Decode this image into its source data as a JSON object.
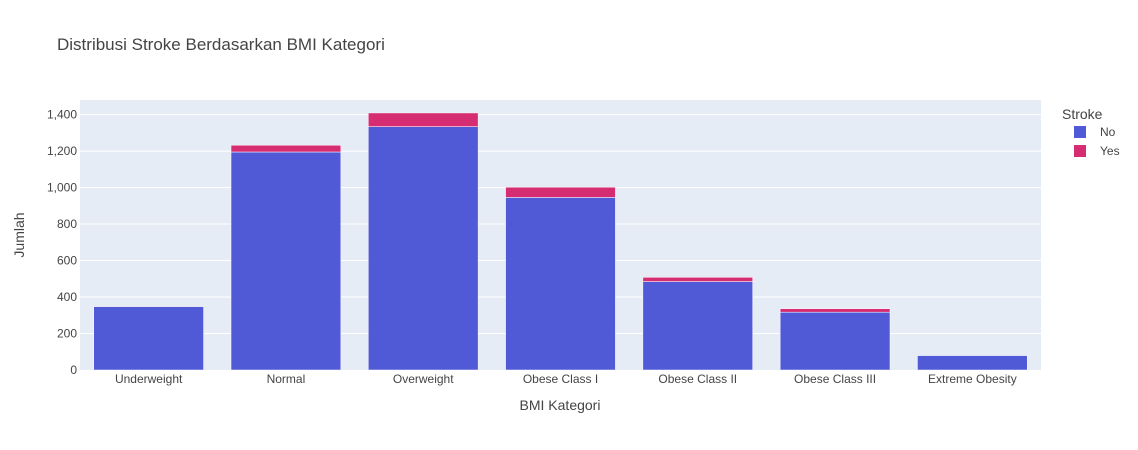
{
  "chart_data": {
    "type": "bar",
    "stacked": true,
    "title": "Distribusi Stroke Berdasarkan BMI Kategori",
    "xlabel": "BMI Kategori",
    "ylabel": "Jumlah",
    "categories": [
      "Underweight",
      "Normal",
      "Overweight",
      "Obese Class I",
      "Obese Class II",
      "Obese Class III",
      "Extreme Obesity"
    ],
    "series": [
      {
        "name": "No",
        "color": "#5059d6",
        "values": [
          348,
          1195,
          1334,
          946,
          485,
          317,
          79
        ]
      },
      {
        "name": "Yes",
        "color": "#d62c72",
        "values": [
          1,
          37,
          75,
          56,
          23,
          19,
          0
        ]
      }
    ],
    "ylim": [
      0,
      1480
    ],
    "yticks": [
      0,
      200,
      400,
      600,
      800,
      1000,
      1200,
      1400
    ],
    "grid": true,
    "plot_background": "#e5ecf6",
    "legend": {
      "title": "Stroke",
      "placement": "top-right"
    }
  }
}
